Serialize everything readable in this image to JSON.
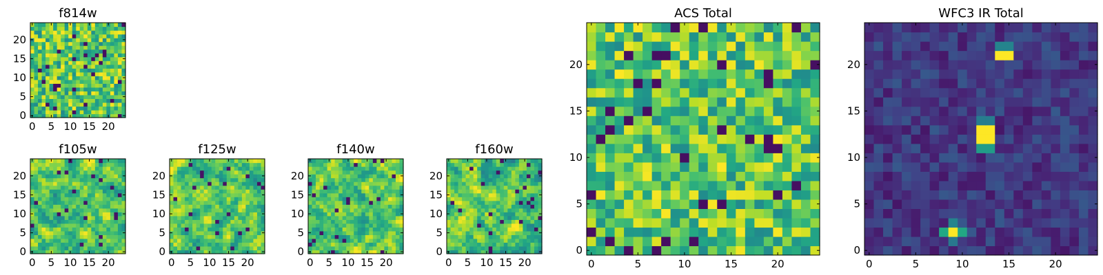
{
  "chart_data": [
    {
      "type": "heatmap",
      "title": "f814w",
      "size": 25,
      "xticks": [
        0,
        5,
        10,
        15,
        20
      ],
      "yticks": [
        0,
        5,
        10,
        15,
        20
      ],
      "xlim": [
        -0.5,
        24.5
      ],
      "ylim": [
        -0.5,
        24.5
      ],
      "colormap": "viridis",
      "value_range": [
        0,
        1
      ],
      "field_character": "uniform noise, mostly green-yellow with a few dark cells",
      "seed": 11,
      "mode": "noisy"
    },
    {
      "type": "heatmap",
      "title": "f105w",
      "size": 25,
      "xticks": [
        0,
        5,
        10,
        15,
        20
      ],
      "yticks": [
        0,
        5,
        10,
        15,
        20
      ],
      "xlim": [
        -0.5,
        24.5
      ],
      "ylim": [
        -0.5,
        24.5
      ],
      "colormap": "viridis",
      "value_range": [
        0,
        1
      ],
      "field_character": "smooth yellow-green field with a few dark pixels",
      "seed": 23,
      "mode": "smooth"
    },
    {
      "type": "heatmap",
      "title": "f125w",
      "size": 25,
      "xticks": [
        0,
        5,
        10,
        15,
        20
      ],
      "yticks": [
        0,
        5,
        10,
        15,
        20
      ],
      "xlim": [
        -0.5,
        24.5
      ],
      "ylim": [
        -0.5,
        24.5
      ],
      "colormap": "viridis",
      "value_range": [
        0,
        1
      ],
      "field_character": "smooth green field with a few dark pixels",
      "seed": 37,
      "mode": "smooth"
    },
    {
      "type": "heatmap",
      "title": "f140w",
      "size": 25,
      "xticks": [
        0,
        5,
        10,
        15,
        20
      ],
      "yticks": [
        0,
        5,
        10,
        15,
        20
      ],
      "xlim": [
        -0.5,
        24.5
      ],
      "ylim": [
        -0.5,
        24.5
      ],
      "colormap": "viridis",
      "value_range": [
        0,
        1
      ],
      "field_character": "smooth yellow-green field",
      "seed": 41,
      "mode": "smooth"
    },
    {
      "type": "heatmap",
      "title": "f160w",
      "size": 25,
      "xticks": [
        0,
        5,
        10,
        15,
        20
      ],
      "yticks": [
        0,
        5,
        10,
        15,
        20
      ],
      "xlim": [
        -0.5,
        24.5
      ],
      "ylim": [
        -0.5,
        24.5
      ],
      "colormap": "viridis",
      "value_range": [
        0,
        1
      ],
      "field_character": "smooth green field with dark blobs",
      "seed": 53,
      "mode": "smooth"
    },
    {
      "type": "heatmap",
      "title": "ACS Total",
      "size": 25,
      "xticks": [
        0,
        5,
        10,
        15,
        20
      ],
      "yticks": [
        0,
        5,
        10,
        15,
        20
      ],
      "xlim": [
        -0.5,
        24.5
      ],
      "ylim": [
        -0.5,
        24.5
      ],
      "colormap": "viridis",
      "value_range": [
        0,
        1
      ],
      "field_character": "uniform green-yellow noise",
      "seed": 67,
      "mode": "noisy"
    },
    {
      "type": "heatmap",
      "title": "WFC3 IR Total",
      "size": 25,
      "xticks": [
        0,
        5,
        10,
        15,
        20
      ],
      "yticks": [
        0,
        5,
        10,
        15,
        20
      ],
      "xlim": [
        -0.5,
        24.5
      ],
      "ylim": [
        -0.5,
        24.5
      ],
      "colormap": "viridis",
      "value_range": [
        0,
        1
      ],
      "field_character": "dark blue background with bright sources",
      "seed": 79,
      "mode": "sources",
      "sources": [
        {
          "x": 12,
          "y": 13,
          "value": 1.0
        },
        {
          "x": 13,
          "y": 13,
          "value": 1.0
        },
        {
          "x": 12,
          "y": 12,
          "value": 1.0
        },
        {
          "x": 13,
          "y": 12,
          "value": 1.0
        },
        {
          "x": 12,
          "y": 11,
          "value": 0.55
        },
        {
          "x": 13,
          "y": 11,
          "value": 0.55
        },
        {
          "x": 12,
          "y": 14,
          "value": 0.42
        },
        {
          "x": 13,
          "y": 14,
          "value": 0.42
        },
        {
          "x": 14,
          "y": 21,
          "value": 1.0
        },
        {
          "x": 15,
          "y": 21,
          "value": 1.0
        },
        {
          "x": 14,
          "y": 22,
          "value": 0.45
        },
        {
          "x": 15,
          "y": 22,
          "value": 0.45
        },
        {
          "x": 9,
          "y": 2,
          "value": 1.0
        },
        {
          "x": 8,
          "y": 2,
          "value": 0.6
        },
        {
          "x": 10,
          "y": 2,
          "value": 0.6
        },
        {
          "x": 9,
          "y": 3,
          "value": 0.45
        },
        {
          "x": 9,
          "y": 1,
          "value": 0.4
        }
      ]
    }
  ]
}
